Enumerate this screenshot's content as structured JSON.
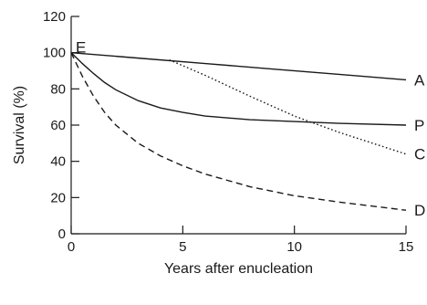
{
  "chart_data": {
    "type": "line",
    "title": "",
    "xlabel": "Years after enucleation",
    "ylabel": "Survival (%)",
    "xlim": [
      0,
      15
    ],
    "ylim": [
      0,
      120
    ],
    "xticks": [
      0,
      5,
      10,
      15
    ],
    "yticks": [
      0,
      20,
      40,
      60,
      80,
      100,
      120
    ],
    "grid": false,
    "start_label": "E",
    "series": [
      {
        "name": "A",
        "style": "solid",
        "color": "#1a1a1a",
        "x": [
          0,
          3,
          6,
          9,
          12,
          15
        ],
        "y": [
          100,
          97,
          94,
          91,
          88,
          85
        ]
      },
      {
        "name": "P",
        "style": "solid",
        "color": "#1a1a1a",
        "x": [
          0,
          0.5,
          1,
          1.5,
          2,
          3,
          4,
          5,
          6,
          8,
          10,
          12,
          15
        ],
        "y": [
          100,
          94,
          88.5,
          83.5,
          79.5,
          73.5,
          69.5,
          67,
          65,
          63,
          62,
          61,
          60
        ]
      },
      {
        "name": "C",
        "style": "dotted",
        "color": "#1a1a1a",
        "x": [
          4.4,
          6,
          8,
          10,
          12,
          13.5,
          15
        ],
        "y": [
          96,
          87.5,
          76,
          65,
          56,
          50,
          44
        ]
      },
      {
        "name": "D",
        "style": "dashed",
        "color": "#1a1a1a",
        "x": [
          0,
          0.5,
          1,
          1.5,
          2,
          3,
          4,
          5,
          6,
          7,
          8,
          10,
          12,
          15
        ],
        "y": [
          100,
          87,
          76,
          67,
          60,
          50,
          43,
          37.5,
          33,
          29.5,
          26,
          21,
          17.5,
          13
        ]
      }
    ]
  }
}
